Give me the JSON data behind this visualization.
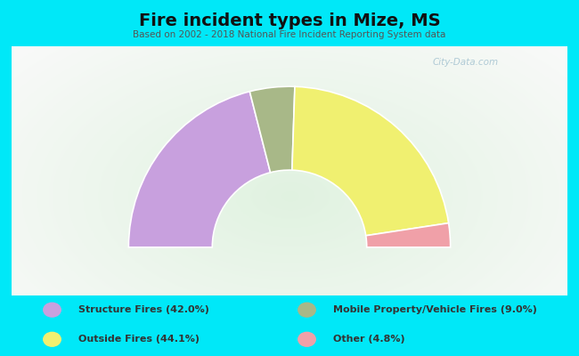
{
  "title": "Fire incident types in Mize, MS",
  "subtitle": "Based on 2002 - 2018 National Fire Incident Reporting System data",
  "seg_order": [
    {
      "label": "Structure Fires (42.0%)",
      "value": 42.0,
      "color": "#c8a0de"
    },
    {
      "label": "Mobile Property/Vehicle Fires (9.0%)",
      "value": 9.0,
      "color": "#a8b888"
    },
    {
      "label": "Outside Fires (44.1%)",
      "value": 44.1,
      "color": "#f0f070"
    },
    {
      "label": "Other (4.8%)",
      "value": 4.8,
      "color": "#f0a0a8"
    }
  ],
  "outer_r": 1.0,
  "inner_r": 0.48,
  "background_outer": "#00e8f8",
  "watermark": "City-Data.com",
  "legend_items_col1": [
    {
      "label": "Structure Fires (42.0%)",
      "color": "#c8a0de"
    },
    {
      "label": "Outside Fires (44.1%)",
      "color": "#f0f070"
    }
  ],
  "legend_items_col2": [
    {
      "label": "Mobile Property/Vehicle Fires (9.0%)",
      "color": "#a8b888"
    },
    {
      "label": "Other (4.8%)",
      "color": "#f0a0a8"
    }
  ]
}
